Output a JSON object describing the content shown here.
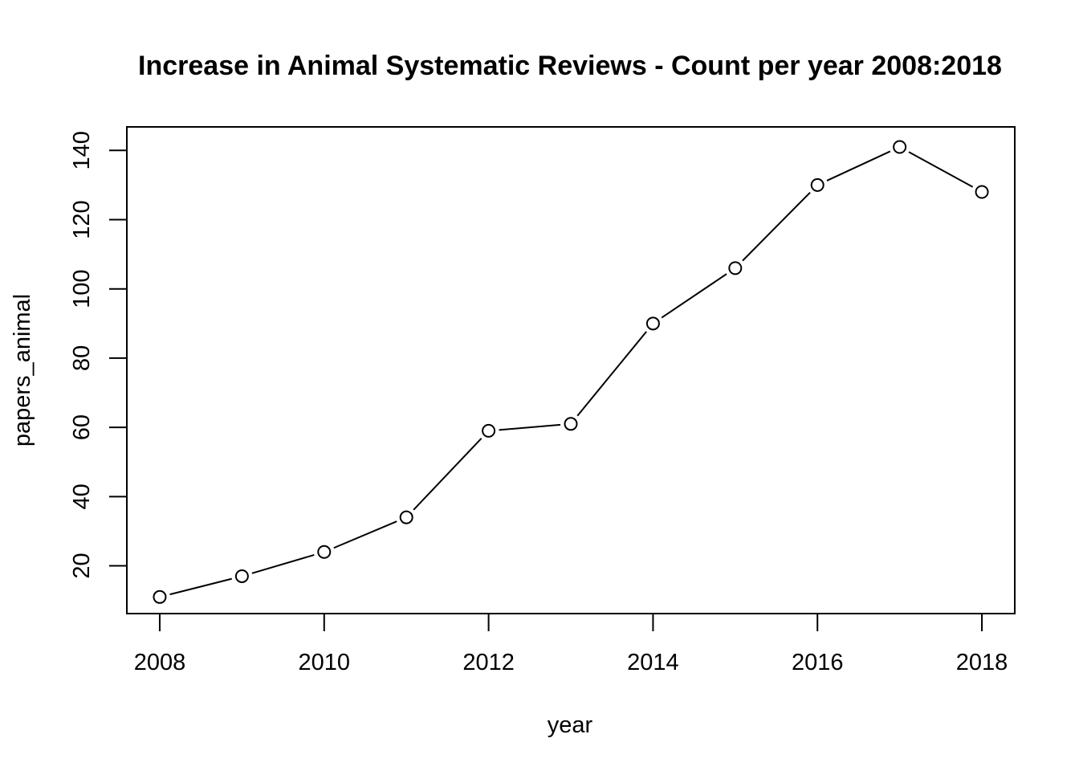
{
  "chart_data": {
    "type": "line",
    "title": "Increase in Animal Systematic Reviews - Count per year 2008:2018",
    "xlabel": "year",
    "ylabel": "papers_animal",
    "x": [
      2008,
      2009,
      2010,
      2011,
      2012,
      2013,
      2014,
      2015,
      2016,
      2017,
      2018
    ],
    "series": [
      {
        "values": [
          11,
          17,
          24,
          34,
          59,
          61,
          90,
          106,
          130,
          141,
          128
        ]
      }
    ],
    "xticks": [
      2008,
      2010,
      2012,
      2014,
      2016,
      2018
    ],
    "yticks": [
      20,
      40,
      60,
      80,
      100,
      120,
      140
    ],
    "xlim": [
      2007.6,
      2018.4
    ],
    "ylim": [
      6.2,
      146.8
    ],
    "marker": "open-circle",
    "grid": false,
    "legend": "none",
    "colors": {
      "line": "#000000",
      "marker_fill": "#ffffff"
    }
  }
}
